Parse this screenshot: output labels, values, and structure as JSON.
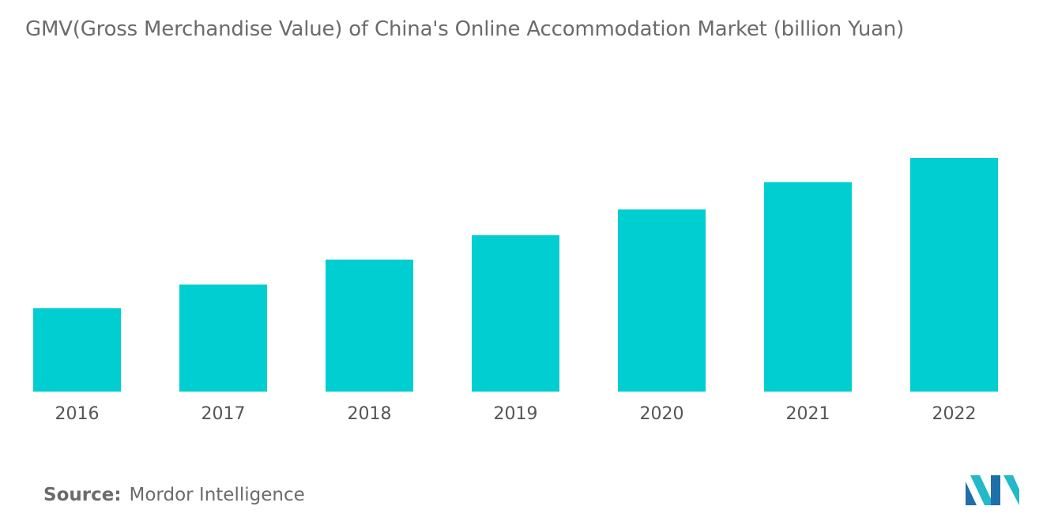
{
  "chart_data": {
    "type": "bar",
    "title": "GMV(Gross Merchandise Value) of China's Online Accommodation Market (billion Yuan)",
    "categories": [
      "2016",
      "2017",
      "2018",
      "2019",
      "2020",
      "2021",
      "2022"
    ],
    "values": [
      110,
      141,
      174,
      206,
      240,
      276,
      308
    ],
    "ylim": [
      0,
      360
    ],
    "grid": false,
    "legend": "none",
    "bar_color": "#00CED1"
  },
  "source": {
    "label": "Source:",
    "name": "Mordor Intelligence"
  },
  "logo_colors": [
    "#1F6FA8",
    "#25B8C9"
  ]
}
